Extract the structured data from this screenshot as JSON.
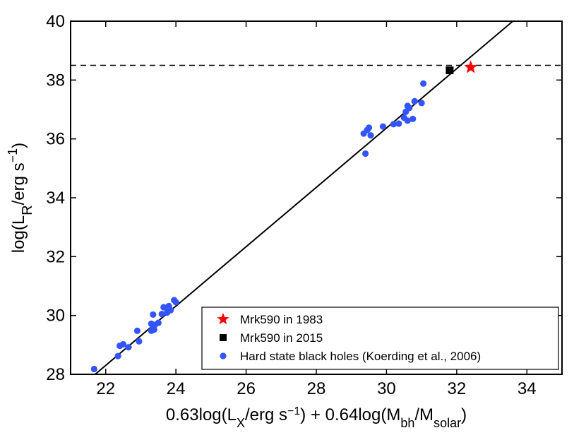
{
  "chart_data": {
    "type": "scatter",
    "xlim": [
      21,
      35
    ],
    "ylim": [
      28,
      40
    ],
    "xticks": [
      "22",
      "24",
      "26",
      "28",
      "30",
      "32",
      "34"
    ],
    "yticks": [
      "28",
      "30",
      "32",
      "34",
      "36",
      "38",
      "40"
    ],
    "xlabel": {
      "pre": "0.63log(L",
      "sub1": "X",
      "mid1": "/erg s",
      "sup1": "−1",
      "mid2": ") + 0.64log(M",
      "sub2": "bh",
      "mid3": "/M",
      "sub3": "solar",
      "post": ")"
    },
    "ylabel": {
      "pre": "log(L",
      "sub": "R",
      "mid": "/erg s",
      "sup": "−1",
      "post": ")"
    },
    "threshold_line": {
      "y": 38.5,
      "style": "dashed"
    },
    "fit_line": {
      "x": [
        21.7,
        33.6
      ],
      "y": [
        28.0,
        40.0
      ]
    },
    "series": [
      {
        "name": "Mrk590 in 1983",
        "marker": "star",
        "color": "#ff0000",
        "points": [
          [
            32.4,
            38.43
          ]
        ]
      },
      {
        "name": "Mrk590 in 2015",
        "marker": "square",
        "color": "#000000",
        "points": [
          [
            31.8,
            38.33
          ]
        ]
      },
      {
        "name": "Hard state black holes (Koerding et al., 2006)",
        "marker": "circle",
        "color": "#3355ff",
        "points": [
          [
            21.67,
            28.18
          ],
          [
            22.35,
            28.62
          ],
          [
            22.4,
            28.97
          ],
          [
            22.5,
            29.02
          ],
          [
            22.65,
            28.92
          ],
          [
            22.95,
            29.12
          ],
          [
            22.9,
            29.48
          ],
          [
            23.3,
            29.72
          ],
          [
            23.3,
            29.48
          ],
          [
            23.38,
            29.52
          ],
          [
            23.35,
            29.6
          ],
          [
            23.4,
            29.68
          ],
          [
            23.5,
            29.75
          ],
          [
            23.35,
            30.03
          ],
          [
            23.6,
            30.05
          ],
          [
            23.65,
            30.28
          ],
          [
            23.75,
            30.1
          ],
          [
            23.75,
            30.25
          ],
          [
            23.85,
            30.18
          ],
          [
            23.8,
            30.32
          ],
          [
            24.0,
            30.45
          ],
          [
            23.95,
            30.52
          ],
          [
            29.35,
            36.18
          ],
          [
            29.4,
            35.5
          ],
          [
            29.45,
            36.3
          ],
          [
            29.5,
            36.38
          ],
          [
            29.55,
            36.12
          ],
          [
            29.9,
            36.42
          ],
          [
            30.2,
            36.5
          ],
          [
            30.35,
            36.52
          ],
          [
            30.5,
            36.72
          ],
          [
            30.55,
            36.92
          ],
          [
            30.6,
            36.62
          ],
          [
            30.65,
            37.05
          ],
          [
            30.6,
            37.12
          ],
          [
            30.75,
            36.68
          ],
          [
            30.8,
            37.28
          ],
          [
            31.0,
            37.22
          ],
          [
            31.05,
            37.88
          ]
        ]
      }
    ]
  }
}
